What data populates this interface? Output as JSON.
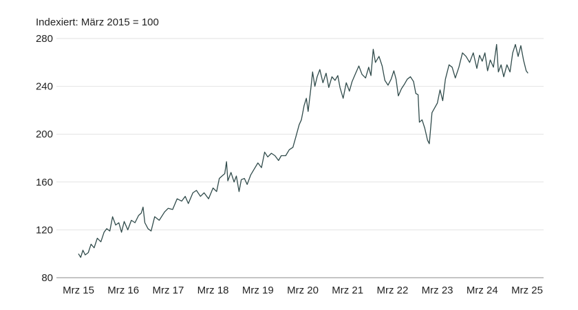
{
  "chart_data": {
    "type": "line",
    "title": "",
    "subtitle": "Indexiert: März 2015 = 100",
    "xlabel": "",
    "ylabel": "",
    "xlim": [
      2015.0,
      2025.2
    ],
    "ylim": [
      80,
      280
    ],
    "yticks": [
      80,
      120,
      160,
      200,
      240,
      280
    ],
    "xticks": [
      {
        "value": 2015.0,
        "label": "Mrz 15"
      },
      {
        "value": 2016.0,
        "label": "Mrz 16"
      },
      {
        "value": 2017.0,
        "label": "Mrz 17"
      },
      {
        "value": 2018.0,
        "label": "Mrz 18"
      },
      {
        "value": 2019.0,
        "label": "Mrz 19"
      },
      {
        "value": 2020.0,
        "label": "Mrz 20"
      },
      {
        "value": 2021.0,
        "label": "Mrz 21"
      },
      {
        "value": 2022.0,
        "label": "Mrz 22"
      },
      {
        "value": 2023.0,
        "label": "Mrz 23"
      },
      {
        "value": 2024.0,
        "label": "Mrz 24"
      },
      {
        "value": 2025.0,
        "label": "Mrz 25"
      }
    ],
    "grid": true,
    "legend": "none",
    "colors": {
      "line": "#2f4a4a",
      "grid": "#e2e2e2",
      "text": "#222222"
    },
    "series": [
      {
        "values": [
          [
            2015.0,
            100
          ],
          [
            2015.05,
            97
          ],
          [
            2015.1,
            103
          ],
          [
            2015.15,
            99
          ],
          [
            2015.22,
            101
          ],
          [
            2015.28,
            108
          ],
          [
            2015.35,
            105
          ],
          [
            2015.42,
            113
          ],
          [
            2015.5,
            110
          ],
          [
            2015.57,
            118
          ],
          [
            2015.63,
            121
          ],
          [
            2015.7,
            119
          ],
          [
            2015.76,
            131
          ],
          [
            2015.83,
            124
          ],
          [
            2015.9,
            126
          ],
          [
            2015.96,
            118
          ],
          [
            2016.02,
            127
          ],
          [
            2016.1,
            120
          ],
          [
            2016.18,
            128
          ],
          [
            2016.26,
            126
          ],
          [
            2016.34,
            132
          ],
          [
            2016.4,
            134
          ],
          [
            2016.44,
            139
          ],
          [
            2016.48,
            126
          ],
          [
            2016.55,
            121
          ],
          [
            2016.62,
            119
          ],
          [
            2016.7,
            131
          ],
          [
            2016.8,
            128
          ],
          [
            2016.92,
            135
          ],
          [
            2017.0,
            138
          ],
          [
            2017.1,
            137
          ],
          [
            2017.2,
            146
          ],
          [
            2017.3,
            144
          ],
          [
            2017.38,
            148
          ],
          [
            2017.45,
            142
          ],
          [
            2017.55,
            151
          ],
          [
            2017.63,
            153
          ],
          [
            2017.72,
            148
          ],
          [
            2017.8,
            151
          ],
          [
            2017.9,
            146
          ],
          [
            2018.0,
            155
          ],
          [
            2018.08,
            152
          ],
          [
            2018.14,
            163
          ],
          [
            2018.2,
            165
          ],
          [
            2018.26,
            167
          ],
          [
            2018.3,
            177
          ],
          [
            2018.33,
            161
          ],
          [
            2018.4,
            168
          ],
          [
            2018.47,
            160
          ],
          [
            2018.52,
            165
          ],
          [
            2018.58,
            152
          ],
          [
            2018.63,
            162
          ],
          [
            2018.7,
            163
          ],
          [
            2018.76,
            158
          ],
          [
            2018.84,
            166
          ],
          [
            2018.92,
            171
          ],
          [
            2019.0,
            176
          ],
          [
            2019.08,
            172
          ],
          [
            2019.15,
            185
          ],
          [
            2019.22,
            181
          ],
          [
            2019.3,
            184
          ],
          [
            2019.38,
            182
          ],
          [
            2019.46,
            178
          ],
          [
            2019.52,
            182
          ],
          [
            2019.62,
            182
          ],
          [
            2019.7,
            187
          ],
          [
            2019.78,
            189
          ],
          [
            2019.84,
            197
          ],
          [
            2019.92,
            208
          ],
          [
            2019.97,
            212
          ],
          [
            2020.03,
            224
          ],
          [
            2020.08,
            230
          ],
          [
            2020.12,
            219
          ],
          [
            2020.18,
            238
          ],
          [
            2020.22,
            252
          ],
          [
            2020.27,
            240
          ],
          [
            2020.32,
            248
          ],
          [
            2020.38,
            254
          ],
          [
            2020.45,
            243
          ],
          [
            2020.52,
            251
          ],
          [
            2020.58,
            239
          ],
          [
            2020.65,
            248
          ],
          [
            2020.72,
            245
          ],
          [
            2020.78,
            249
          ],
          [
            2020.83,
            239
          ],
          [
            2020.9,
            230
          ],
          [
            2020.97,
            243
          ],
          [
            2021.04,
            236
          ],
          [
            2021.1,
            244
          ],
          [
            2021.18,
            251
          ],
          [
            2021.25,
            257
          ],
          [
            2021.32,
            250
          ],
          [
            2021.4,
            247
          ],
          [
            2021.47,
            256
          ],
          [
            2021.52,
            249
          ],
          [
            2021.57,
            271
          ],
          [
            2021.62,
            260
          ],
          [
            2021.7,
            265
          ],
          [
            2021.77,
            257
          ],
          [
            2021.83,
            245
          ],
          [
            2021.9,
            241
          ],
          [
            2021.97,
            246
          ],
          [
            2022.03,
            253
          ],
          [
            2022.08,
            246
          ],
          [
            2022.13,
            232
          ],
          [
            2022.2,
            238
          ],
          [
            2022.27,
            242
          ],
          [
            2022.33,
            246
          ],
          [
            2022.4,
            248
          ],
          [
            2022.47,
            244
          ],
          [
            2022.52,
            234
          ],
          [
            2022.57,
            233
          ],
          [
            2022.6,
            210
          ],
          [
            2022.66,
            212
          ],
          [
            2022.72,
            205
          ],
          [
            2022.78,
            195
          ],
          [
            2022.82,
            192
          ],
          [
            2022.88,
            218
          ],
          [
            2022.94,
            222
          ],
          [
            2023.0,
            226
          ],
          [
            2023.06,
            237
          ],
          [
            2023.12,
            228
          ],
          [
            2023.18,
            246
          ],
          [
            2023.26,
            258
          ],
          [
            2023.33,
            256
          ],
          [
            2023.4,
            247
          ],
          [
            2023.48,
            256
          ],
          [
            2023.56,
            268
          ],
          [
            2023.64,
            265
          ],
          [
            2023.72,
            260
          ],
          [
            2023.8,
            268
          ],
          [
            2023.88,
            255
          ],
          [
            2023.94,
            266
          ],
          [
            2024.0,
            261
          ],
          [
            2024.06,
            268
          ],
          [
            2024.12,
            253
          ],
          [
            2024.18,
            262
          ],
          [
            2024.25,
            256
          ],
          [
            2024.32,
            275
          ],
          [
            2024.36,
            252
          ],
          [
            2024.42,
            258
          ],
          [
            2024.48,
            248
          ],
          [
            2024.55,
            258
          ],
          [
            2024.62,
            252
          ],
          [
            2024.68,
            268
          ],
          [
            2024.74,
            275
          ],
          [
            2024.8,
            265
          ],
          [
            2024.86,
            274
          ],
          [
            2024.92,
            262
          ],
          [
            2024.98,
            253
          ],
          [
            2025.02,
            251
          ]
        ]
      }
    ]
  }
}
